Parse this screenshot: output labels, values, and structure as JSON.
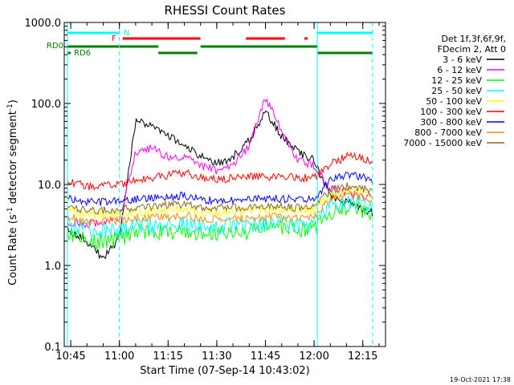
{
  "chart_data": {
    "type": "line",
    "title": "RHESSI Count Rates",
    "xlabel": "Start Time (07-Sep-14 10:43:02)",
    "ylabel": "Count Rate (s⁻¹ detector segment⁻¹)",
    "ylabel_main": "Count Rate (s",
    "ylabel_sup1": "-1",
    "ylabel_mid": " detector segment",
    "ylabel_sup2": "-1",
    "ylabel_end": ")",
    "yscale": "log",
    "ylim": [
      0.1,
      1000
    ],
    "xlim": [
      "10:43",
      "12:22"
    ],
    "x_ticks": [
      "10:45",
      "11:00",
      "11:15",
      "11:30",
      "11:45",
      "12:00",
      "12:15"
    ],
    "y_ticks": [
      "0.1",
      "1.0",
      "10.0",
      "100.0",
      "1000.0"
    ],
    "legend_header": [
      "Det 1f,3f,6f,9f,",
      "FDecim 2, Att 0"
    ],
    "timestamp": "19-Oct-2021 17:38",
    "flags": {
      "N": "N",
      "F": "F",
      "RD0": "RD0",
      "RD6": "RD6"
    },
    "x": [
      "10:44",
      "10:50",
      "10:55",
      "11:00",
      "11:05",
      "11:10",
      "11:15",
      "11:20",
      "11:25",
      "11:30",
      "11:35",
      "11:40",
      "11:45",
      "11:50",
      "11:55",
      "12:00",
      "12:05",
      "12:10",
      "12:15",
      "12:18"
    ],
    "series": [
      {
        "name": "3 - 6 keV",
        "color": "#000000",
        "values": [
          2.8,
          2.0,
          1.2,
          2.2,
          60,
          55,
          40,
          30,
          22,
          18,
          22,
          35,
          80,
          40,
          25,
          20,
          7,
          6,
          5,
          4.5
        ]
      },
      {
        "name": "6 - 12 keV",
        "color": "#ff00ff",
        "values": [
          3.5,
          3.2,
          3.5,
          3.8,
          25,
          28,
          22,
          22,
          17,
          15,
          17,
          30,
          120,
          45,
          20,
          17,
          9,
          8,
          7,
          7
        ]
      },
      {
        "name": "12 - 25 keV",
        "color": "#00ff00",
        "values": [
          2.5,
          2.0,
          2.0,
          2.1,
          2.5,
          2.6,
          2.6,
          2.6,
          2.4,
          2.4,
          2.4,
          2.6,
          3.0,
          3.0,
          2.7,
          2.8,
          4.5,
          5,
          4.8,
          4
        ]
      },
      {
        "name": "25 - 50 keV",
        "color": "#00ffff",
        "values": [
          3.3,
          2.7,
          2.7,
          2.9,
          3.1,
          3.1,
          3.2,
          3.3,
          3.0,
          3.0,
          3.2,
          3.2,
          3.3,
          3.3,
          3.1,
          3.2,
          5.5,
          6,
          5.5,
          4.8
        ]
      },
      {
        "name": "50 - 100 keV",
        "color": "#ffff00",
        "values": [
          5.0,
          4.2,
          4.2,
          4.3,
          4.5,
          4.6,
          4.8,
          5.0,
          4.6,
          4.5,
          4.7,
          4.8,
          4.9,
          4.9,
          4.7,
          4.8,
          7.5,
          8.5,
          8,
          7
        ]
      },
      {
        "name": "100 - 300 keV",
        "color": "#ff0000",
        "values": [
          11,
          9.5,
          9.5,
          10,
          11,
          12,
          13,
          14,
          12,
          11.5,
          12,
          12.5,
          12.5,
          12.5,
          12,
          12,
          18,
          22,
          22,
          18
        ]
      },
      {
        "name": "300 - 800 keV",
        "color": "#0000ff",
        "values": [
          7,
          6,
          6,
          6.2,
          6.6,
          6.8,
          7,
          7.3,
          6.6,
          6.3,
          6.5,
          6.6,
          6.7,
          6.7,
          6.5,
          6.6,
          11,
          13,
          12.5,
          11
        ]
      },
      {
        "name": "800 - 7000 keV",
        "color": "#ff8c00",
        "values": [
          4,
          3.5,
          3.5,
          3.6,
          3.8,
          3.9,
          4,
          4.1,
          3.8,
          3.7,
          3.8,
          3.9,
          4,
          4,
          3.8,
          3.9,
          6.5,
          7.5,
          7,
          6.5
        ]
      },
      {
        "name": "7000 - 15000 keV",
        "color": "#8b6914",
        "values": [
          5.5,
          4.8,
          4.8,
          5,
          5.2,
          5.3,
          5.5,
          5.6,
          5.2,
          5.1,
          5.2,
          5.3,
          5.4,
          5.4,
          5.2,
          5.3,
          8.5,
          9.5,
          9,
          8.5
        ]
      }
    ]
  }
}
